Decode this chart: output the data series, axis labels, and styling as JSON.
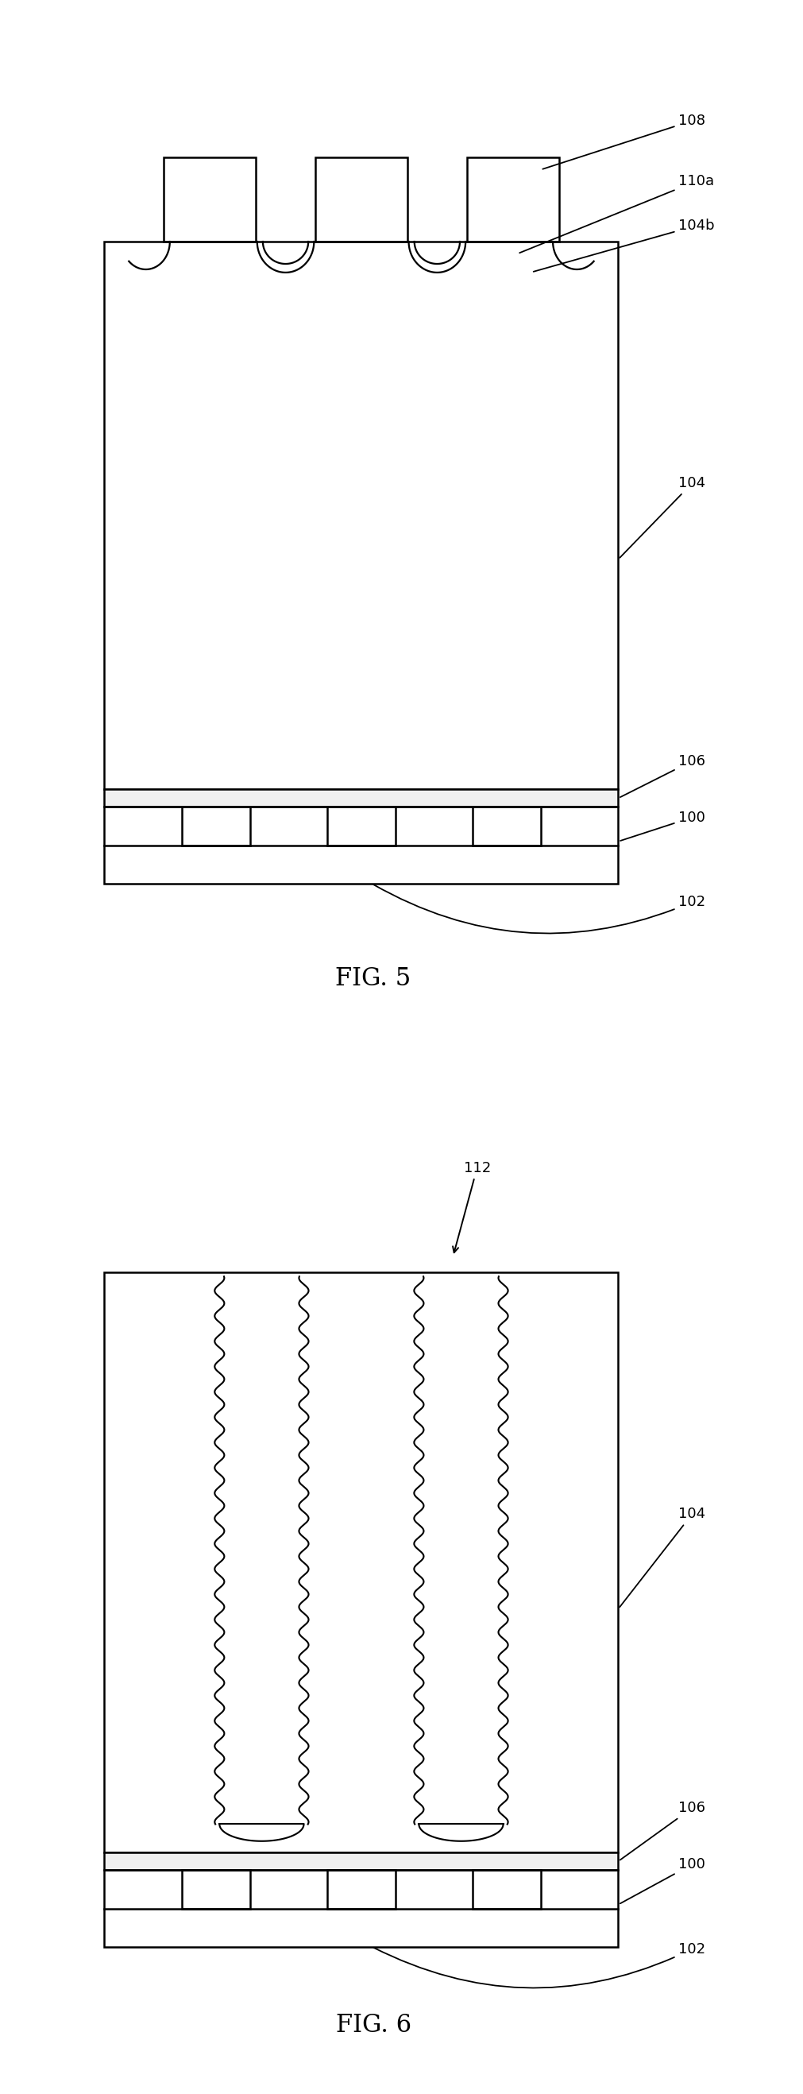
{
  "bg_color": "#ffffff",
  "line_color": "#000000",
  "fig_width": 10.11,
  "fig_height": 26.35,
  "fig5_title": "FIG. 5",
  "fig6_title": "FIG. 6",
  "labels": {
    "108": "108",
    "110a": "110a",
    "104b": "104b",
    "104": "104",
    "106": "106",
    "100": "100",
    "102": "102",
    "112": "112"
  },
  "ann_fontsize": 13,
  "title_fontsize": 22
}
